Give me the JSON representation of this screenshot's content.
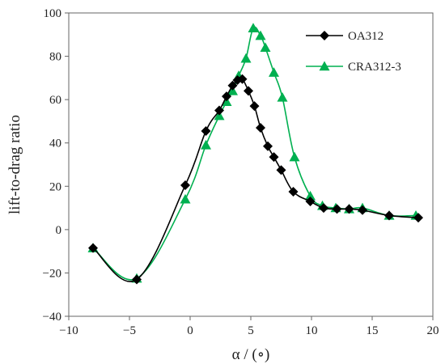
{
  "chart_data": {
    "type": "line",
    "title": "",
    "xlabel": "α / (∘)",
    "ylabel": "lift-to-drag ratio",
    "xlim": [
      -10,
      20
    ],
    "ylim": [
      -40,
      100
    ],
    "x_ticks": [
      "−10",
      "−5",
      "0",
      "5",
      "10",
      "15",
      "20"
    ],
    "y_ticks": [
      "−40",
      "−20",
      "0",
      "20",
      "40",
      "60",
      "80",
      "100"
    ],
    "x_tick_values": [
      -10,
      -5,
      0,
      5,
      10,
      15,
      20
    ],
    "y_tick_values": [
      -40,
      -20,
      0,
      20,
      40,
      60,
      80,
      100
    ],
    "grid": false,
    "legend_position": "top-right",
    "series": [
      {
        "name": "OA312",
        "color": "#000000",
        "marker": "diamond",
        "x": [
          -8.0,
          -4.4,
          -0.4,
          1.3,
          2.4,
          3.0,
          3.5,
          3.9,
          4.3,
          4.8,
          5.3,
          5.8,
          6.4,
          6.9,
          7.5,
          8.5,
          9.9,
          11.0,
          12.1,
          13.1,
          14.2,
          16.4,
          18.8
        ],
        "y": [
          -8.5,
          -23,
          20.5,
          45.5,
          55,
          61.5,
          66.5,
          69,
          69.5,
          64,
          57,
          47,
          38.5,
          33.5,
          27.5,
          17.5,
          13,
          10,
          9.5,
          9.5,
          9,
          6.5,
          5.5
        ]
      },
      {
        "name": "CRA312-3",
        "color": "#00b050",
        "marker": "triangle",
        "x": [
          -8.0,
          -4.4,
          -0.4,
          1.3,
          2.4,
          3.0,
          3.5,
          4.0,
          4.6,
          5.2,
          5.8,
          6.2,
          6.9,
          7.6,
          8.6,
          9.9,
          10.9,
          12.0,
          13.1,
          14.2,
          16.4,
          18.6
        ],
        "y": [
          -8.5,
          -22.5,
          14,
          39,
          52.5,
          59,
          64,
          71,
          79,
          93,
          89.5,
          84,
          72.5,
          61,
          33.5,
          15.5,
          11,
          10,
          9.5,
          10,
          6.5,
          6.5
        ]
      }
    ]
  }
}
